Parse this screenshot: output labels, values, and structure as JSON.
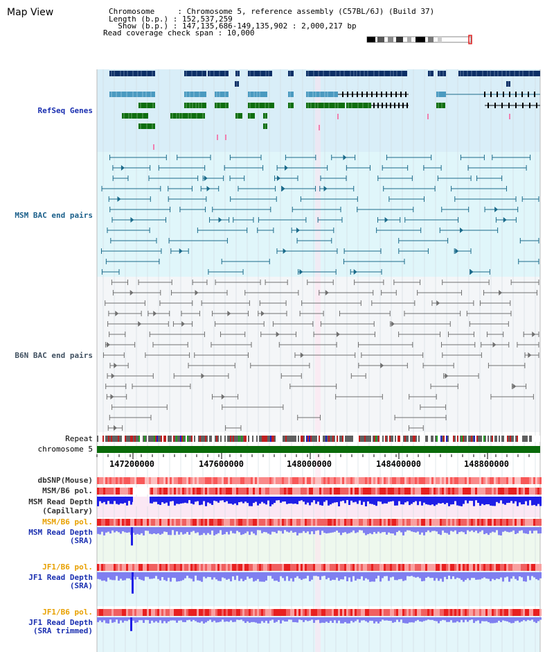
{
  "view_title": "Map View",
  "header": {
    "chromosome_line": "Chromosome     : Chromosome 5, reference assembly (C57BL/6J) (Build 37)",
    "length_line": "Length (b.p.) : 152,537,259",
    "show_line": "  Show (b.p.) : 147,135,686-149,135,902 : 2,000,217 bp",
    "span_line": "Read coverage check span : 10,000"
  },
  "tracks": {
    "refseq": "RefSeq Genes",
    "msm_bac": "MSM BAC end pairs",
    "b6n_bac": "B6N BAC end pairs",
    "repeat": "Repeat",
    "chromosome": "chromosome 5",
    "dbsnp": "dbSNP(Mouse)",
    "msm_b6_pol_1": "MSM/B6 pol.",
    "msm_read_depth_cap_1": "MSM Read Depth",
    "msm_read_depth_cap_2": "(Capillary)",
    "msm_b6_pol_2": "MSM/B6 pol.",
    "msm_read_depth_sra_1": "MSM Read Depth",
    "msm_read_depth_sra_2": "(SRA)",
    "jf1_b6_pol_1": "JF1/B6 pol.",
    "jf1_read_depth_sra_1": "JF1 Read Depth",
    "jf1_read_depth_sra_2": "(SRA)",
    "jf1_b6_pol_2": "JF1/B6 pol.",
    "jf1_read_depth_trim_1": "JF1 Read Depth",
    "jf1_read_depth_trim_2": "(SRA trimmed)"
  },
  "axis_ticks": [
    "147200000",
    "147600000",
    "148000000",
    "148400000",
    "148800000"
  ],
  "colors": {
    "refseq_bg": "#d9eef8",
    "bac_bg": "#e0f6fa",
    "b6n_bg": "#f4f6f8",
    "dark_blue": "#0b2f66",
    "mid_blue": "#4a9ac0",
    "green": "#0e6e0e",
    "teal_line": "#1a6a8a",
    "gray_line": "#707070",
    "chrom_green": "#0a6a0a",
    "depth_blue": "#1e1ee6",
    "depth_light": "#7f7ff0"
  }
}
